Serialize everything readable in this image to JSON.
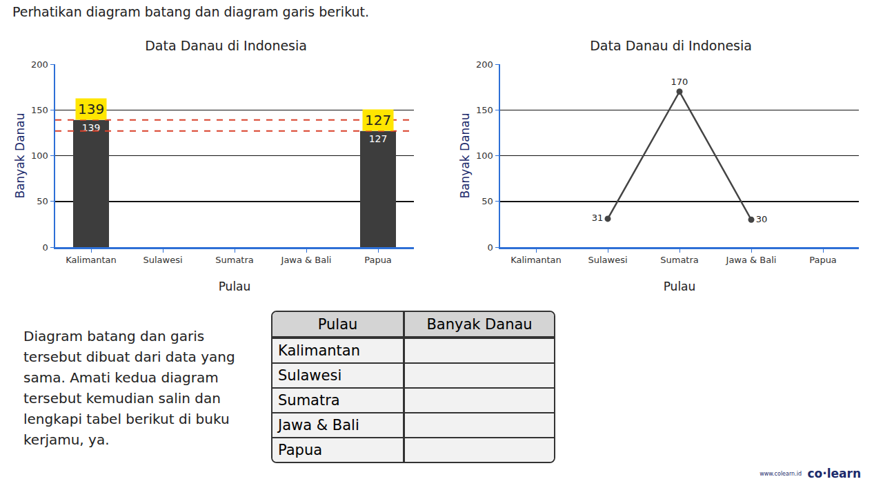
{
  "heading": "Perhatikan diagram batang dan diagram garis berikut.",
  "chart_data": [
    {
      "type": "bar",
      "title": "Data Danau di Indonesia",
      "x_label": "Pulau",
      "y_label": "Banyak Danau",
      "categories": [
        "Kalimantan",
        "Sulawesi",
        "Sumatra",
        "Jawa & Bali",
        "Papua"
      ],
      "values": [
        139,
        null,
        null,
        null,
        127
      ],
      "color": "#3d3d3d",
      "ylim": [
        0,
        200
      ],
      "yticks": [
        0,
        50,
        100,
        150,
        200
      ],
      "grid": true,
      "data_labels": true,
      "highlights": [
        {
          "category": "Kalimantan",
          "value": 139
        },
        {
          "category": "Papua",
          "value": 127
        }
      ]
    },
    {
      "type": "line",
      "title": "Data Danau di Indonesia",
      "x_label": "Pulau",
      "y_label": "Banyak Danau",
      "categories": [
        "Kalimantan",
        "Sulawesi",
        "Sumatra",
        "Jawa & Bali",
        "Papua"
      ],
      "values": [
        null,
        31,
        170,
        30,
        null
      ],
      "color": "#444444",
      "marker": "circle",
      "ylim": [
        0,
        200
      ],
      "yticks": [
        0,
        50,
        100,
        150,
        200
      ],
      "grid": true,
      "data_labels": true
    }
  ],
  "instruction": "Diagram batang dan garis tersebut dibuat dari data yang sama. Amati kedua diagram tersebut kemudian salin dan lengkapi tabel berikut di buku kerjamu, ya.",
  "table": {
    "header": [
      "Pulau",
      "Banyak Danau"
    ],
    "rows": [
      [
        "Kalimantan"
      ],
      [
        "Sulawesi"
      ],
      [
        "Sumatra"
      ],
      [
        "Jawa & Bali"
      ],
      [
        "Papua"
      ]
    ]
  },
  "brand": "co·learn",
  "url": "www.colearn.id"
}
